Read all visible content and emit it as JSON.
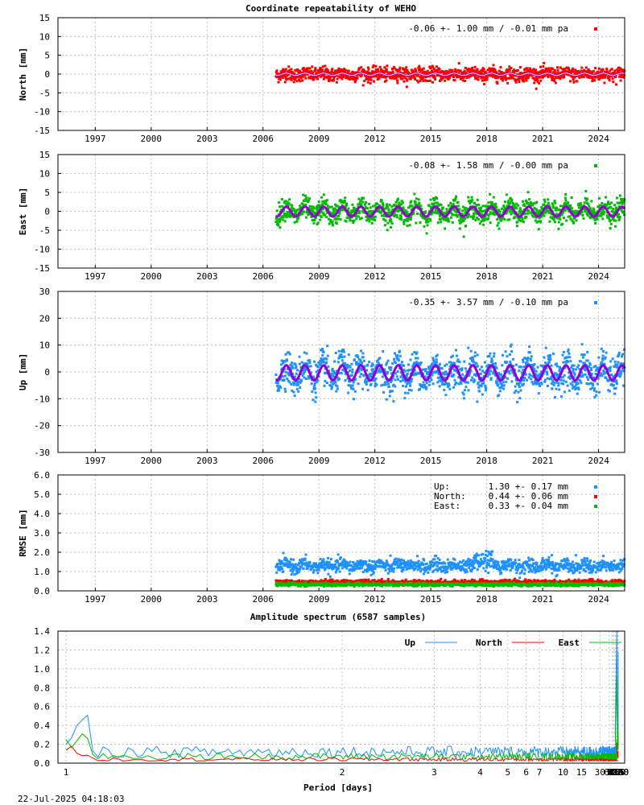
{
  "page_title": "Coordinate repeatability of WEHO",
  "timestamp": "22-Jul-2025 04:18:03",
  "colors": {
    "north": "#ff0000",
    "east": "#00bb00",
    "up": "#1e90ff",
    "model": "#9400d3",
    "grid": "#b0b0b0"
  },
  "chart_data": [
    {
      "id": "north",
      "type": "scatter",
      "ylabel": "North [mm]",
      "ylim": [
        -15,
        15
      ],
      "yticks": [
        15,
        10,
        5,
        0,
        -5,
        -10,
        -15
      ],
      "xlim": [
        1995.0,
        2025.4
      ],
      "xticks": [
        1997,
        2000,
        2003,
        2006,
        2009,
        2012,
        2015,
        2018,
        2021,
        2024
      ],
      "legend": "-0.06 +- 1.00 mm / -0.01 mm pa",
      "legend_position": "top-right",
      "data_start": 2006.7,
      "data_end": 2025.4,
      "mean": -0.06,
      "rms": 1.0,
      "trend_mm_per_year": -0.01,
      "seasonal_amplitude": 0.3,
      "series_color": "#ff0000"
    },
    {
      "id": "east",
      "type": "scatter",
      "ylabel": "East [mm]",
      "ylim": [
        -15,
        15
      ],
      "yticks": [
        15,
        10,
        5,
        0,
        -5,
        -10,
        -15
      ],
      "xlim": [
        1995.0,
        2025.4
      ],
      "xticks": [
        1997,
        2000,
        2003,
        2006,
        2009,
        2012,
        2015,
        2018,
        2021,
        2024
      ],
      "legend": "-0.08 +- 1.58 mm / -0.00 mm pa",
      "legend_position": "top-right",
      "data_start": 2006.7,
      "data_end": 2025.4,
      "mean": -0.08,
      "rms": 1.58,
      "trend_mm_per_year": -0.0,
      "seasonal_amplitude": 1.3,
      "series_color": "#00bb00"
    },
    {
      "id": "up",
      "type": "scatter",
      "ylabel": "Up [mm]",
      "ylim": [
        -30,
        30
      ],
      "yticks": [
        30,
        20,
        10,
        0,
        -10,
        -20,
        -30
      ],
      "xlim": [
        1995.0,
        2025.4
      ],
      "xticks": [
        1997,
        2000,
        2003,
        2006,
        2009,
        2012,
        2015,
        2018,
        2021,
        2024
      ],
      "legend": "-0.35 +- 3.57 mm / -0.10 mm pa",
      "legend_position": "top-right",
      "data_start": 2006.7,
      "data_end": 2025.4,
      "mean": -0.35,
      "rms": 3.57,
      "trend_mm_per_year": -0.1,
      "seasonal_amplitude": 2.8,
      "series_color": "#1e90ff"
    },
    {
      "id": "rmse",
      "type": "scatter",
      "ylabel": "RMSE [mm]",
      "ylim": [
        0.0,
        6.0
      ],
      "yticks": [
        "6.0",
        "5.0",
        "4.0",
        "3.0",
        "2.0",
        "1.0",
        "0.0"
      ],
      "xlim": [
        1995.0,
        2025.4
      ],
      "xticks": [
        1997,
        2000,
        2003,
        2006,
        2009,
        2012,
        2015,
        2018,
        2021,
        2024
      ],
      "legend_position": "top-right",
      "legend_rows": [
        {
          "name": "Up:",
          "value": "1.30 +- 0.17 mm",
          "color": "#1e90ff",
          "level": 1.3,
          "spread": 0.17
        },
        {
          "name": "North:",
          "value": "0.44 +- 0.06 mm",
          "color": "#ff0000",
          "level": 0.44,
          "spread": 0.06
        },
        {
          "name": "East:",
          "value": "0.33 +- 0.04 mm",
          "color": "#00bb00",
          "level": 0.33,
          "spread": 0.04
        }
      ],
      "data_start": 2006.7,
      "data_end": 2025.4
    },
    {
      "id": "spectrum",
      "type": "line",
      "title": "Amplitude spectrum (6587 samples)",
      "xlabel": "Period [days]",
      "ylim": [
        0.0,
        1.4
      ],
      "yticks": [
        "1.4",
        "1.2",
        "1.0",
        "0.8",
        "0.6",
        "0.4",
        "0.2",
        "0.0"
      ],
      "x_scale": "reciprocal",
      "xticks": [
        1,
        2,
        3,
        4,
        5,
        6,
        7,
        10,
        15,
        30,
        61,
        91,
        122,
        183,
        365,
        730,
        2190,
        4380,
        8760
      ],
      "legend_position": "top-right",
      "series": [
        {
          "name": "Up",
          "color": "#1e90ff",
          "peaks": [
            [
              365,
              1.4
            ],
            [
              182,
              0.33
            ],
            [
              8760,
              1.18
            ],
            [
              4380,
              0.15
            ],
            [
              2190,
              0.4
            ],
            [
              730,
              0.33
            ]
          ],
          "baseline": 0.12
        },
        {
          "name": "North",
          "color": "#ff0000",
          "peaks": [
            [
              365,
              0.22
            ],
            [
              8760,
              0.13
            ],
            [
              2190,
              0.05
            ],
            [
              730,
              0.08
            ]
          ],
          "baseline": 0.04
        },
        {
          "name": "East",
          "color": "#00bb00",
          "peaks": [
            [
              365,
              0.92
            ],
            [
              182,
              0.25
            ],
            [
              8760,
              0.33
            ],
            [
              4380,
              0.14
            ],
            [
              2190,
              0.3
            ],
            [
              730,
              0.15
            ]
          ],
          "baseline": 0.07
        }
      ]
    }
  ]
}
